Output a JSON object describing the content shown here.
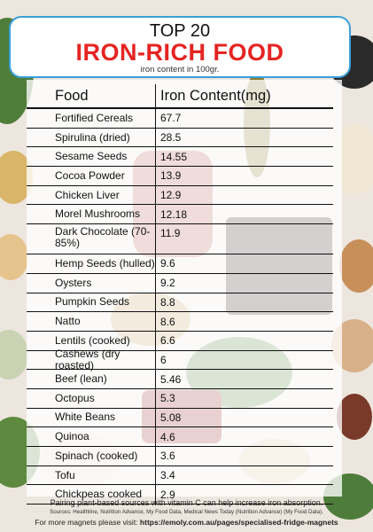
{
  "header": {
    "top_line": "TOP 20",
    "title": "IRON-RICH FOOD",
    "subtitle": "iron content in 100gr."
  },
  "table": {
    "columns": [
      "Food",
      "Iron Content(mg)"
    ],
    "rows": [
      {
        "food": "Fortified Cereals",
        "iron": "67.7"
      },
      {
        "food": "Spirulina (dried)",
        "iron": "28.5"
      },
      {
        "food": "Sesame Seeds",
        "iron": "14.55"
      },
      {
        "food": "Cocoa Powder",
        "iron": "13.9"
      },
      {
        "food": "Chicken Liver",
        "iron": "12.9"
      },
      {
        "food": "Morel Mushrooms",
        "iron": "12.18"
      },
      {
        "food": "Dark Chocolate (70-85%)",
        "iron": "11.9"
      },
      {
        "food": "Hemp Seeds (hulled)",
        "iron": "9.6"
      },
      {
        "food": "Oysters",
        "iron": "9.2"
      },
      {
        "food": "Pumpkin Seeds",
        "iron": "8.8"
      },
      {
        "food": "Natto",
        "iron": "8.6"
      },
      {
        "food": "Lentils (cooked)",
        "iron": "6.6"
      },
      {
        "food": "Cashews (dry roasted)",
        "iron": "6"
      },
      {
        "food": "Beef (lean)",
        "iron": "5.46"
      },
      {
        "food": "Octopus",
        "iron": "5.3"
      },
      {
        "food": "White Beans",
        "iron": "5.08"
      },
      {
        "food": "Quinoa",
        "iron": "4.6"
      },
      {
        "food": "Spinach (cooked)",
        "iron": "3.6"
      },
      {
        "food": "Tofu",
        "iron": "3.4"
      },
      {
        "food": "Chickpeas cooked",
        "iron": "2.9"
      }
    ]
  },
  "footer": {
    "tip": "Pairing plant-based sources with vitamin C can help increase iron absorption.",
    "sources": "Sources: Healthline, Nutrition Advance, My Food Data, Medical News Today (Nutrition Advance) (My Food Data).",
    "more_prefix": "For more magnets please visit:",
    "more_link": "https://emoly.com.au/pages/specialised-fridge-magnets"
  }
}
